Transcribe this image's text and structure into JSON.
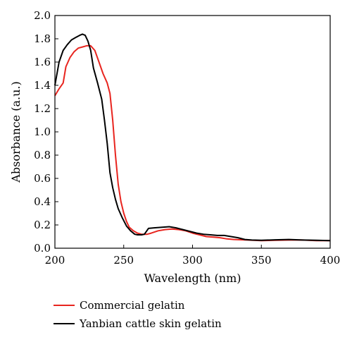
{
  "chart_data": {
    "type": "line",
    "xlabel": "Wavelength (nm)",
    "ylabel": "Absorbance (a.u.)",
    "xlim": [
      200,
      400
    ],
    "ylim": [
      0,
      2.0
    ],
    "x_ticks": [
      "200",
      "250",
      "300",
      "350",
      "400"
    ],
    "y_ticks": [
      "0.0",
      "0.2",
      "0.4",
      "0.6",
      "0.8",
      "1.0",
      "1.2",
      "1.4",
      "1.6",
      "1.8",
      "2.0"
    ],
    "grid": false,
    "legend_position": "bottom-left",
    "series": [
      {
        "name": "Commercial gelatin",
        "color": "#e8251f",
        "points": [
          [
            200,
            1.31
          ],
          [
            203,
            1.37
          ],
          [
            206,
            1.42
          ],
          [
            208,
            1.56
          ],
          [
            211,
            1.64
          ],
          [
            214,
            1.69
          ],
          [
            217,
            1.72
          ],
          [
            220,
            1.73
          ],
          [
            223,
            1.74
          ],
          [
            226,
            1.74
          ],
          [
            229,
            1.7
          ],
          [
            232,
            1.6
          ],
          [
            235,
            1.5
          ],
          [
            238,
            1.42
          ],
          [
            240,
            1.33
          ],
          [
            242,
            1.1
          ],
          [
            244,
            0.8
          ],
          [
            246,
            0.55
          ],
          [
            248,
            0.4
          ],
          [
            250,
            0.3
          ],
          [
            252,
            0.23
          ],
          [
            254,
            0.18
          ],
          [
            257,
            0.15
          ],
          [
            260,
            0.13
          ],
          [
            263,
            0.12
          ],
          [
            267,
            0.12
          ],
          [
            270,
            0.13
          ],
          [
            275,
            0.15
          ],
          [
            280,
            0.16
          ],
          [
            285,
            0.165
          ],
          [
            290,
            0.16
          ],
          [
            295,
            0.15
          ],
          [
            300,
            0.13
          ],
          [
            305,
            0.115
          ],
          [
            310,
            0.1
          ],
          [
            315,
            0.095
          ],
          [
            320,
            0.09
          ],
          [
            325,
            0.08
          ],
          [
            330,
            0.075
          ],
          [
            340,
            0.07
          ],
          [
            350,
            0.065
          ],
          [
            360,
            0.068
          ],
          [
            370,
            0.07
          ],
          [
            380,
            0.07
          ],
          [
            390,
            0.065
          ],
          [
            400,
            0.065
          ]
        ]
      },
      {
        "name": "Yanbian cattle skin gelatin",
        "color": "#000000",
        "points": [
          [
            200,
            1.4
          ],
          [
            203,
            1.6
          ],
          [
            206,
            1.7
          ],
          [
            209,
            1.75
          ],
          [
            212,
            1.79
          ],
          [
            215,
            1.81
          ],
          [
            218,
            1.83
          ],
          [
            220,
            1.84
          ],
          [
            222,
            1.83
          ],
          [
            224,
            1.78
          ],
          [
            226,
            1.7
          ],
          [
            228,
            1.55
          ],
          [
            231,
            1.42
          ],
          [
            234,
            1.28
          ],
          [
            236,
            1.1
          ],
          [
            238,
            0.9
          ],
          [
            240,
            0.65
          ],
          [
            242,
            0.52
          ],
          [
            244,
            0.42
          ],
          [
            246,
            0.34
          ],
          [
            249,
            0.26
          ],
          [
            252,
            0.19
          ],
          [
            255,
            0.15
          ],
          [
            258,
            0.12
          ],
          [
            260,
            0.115
          ],
          [
            263,
            0.115
          ],
          [
            265,
            0.12
          ],
          [
            268,
            0.17
          ],
          [
            272,
            0.175
          ],
          [
            278,
            0.18
          ],
          [
            283,
            0.185
          ],
          [
            288,
            0.175
          ],
          [
            293,
            0.16
          ],
          [
            298,
            0.145
          ],
          [
            303,
            0.13
          ],
          [
            308,
            0.12
          ],
          [
            313,
            0.115
          ],
          [
            318,
            0.11
          ],
          [
            323,
            0.11
          ],
          [
            328,
            0.1
          ],
          [
            333,
            0.09
          ],
          [
            338,
            0.075
          ],
          [
            343,
            0.07
          ],
          [
            350,
            0.068
          ],
          [
            360,
            0.072
          ],
          [
            370,
            0.075
          ],
          [
            380,
            0.07
          ],
          [
            390,
            0.068
          ],
          [
            400,
            0.065
          ]
        ]
      }
    ]
  }
}
